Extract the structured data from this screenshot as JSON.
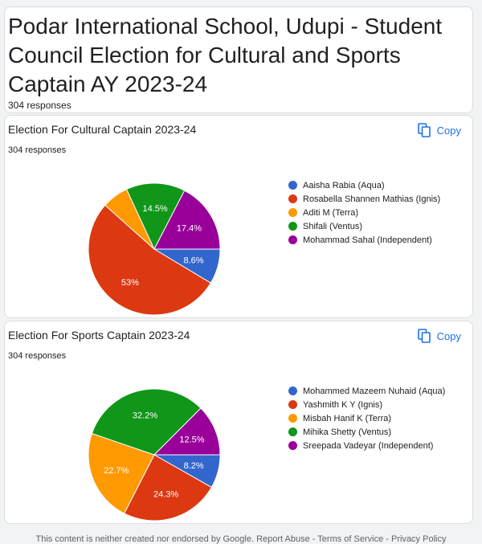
{
  "form": {
    "title": "Podar International School, Udupi - Student Council Election for Cultural and Sports Captain AY 2023-24",
    "responses": "304 responses"
  },
  "copy_label": "Copy",
  "chart_data": [
    {
      "type": "pie",
      "title": "Election For Cultural Captain 2023-24",
      "responses": "304 responses",
      "categories": [
        "Aaisha Rabia (Aqua)",
        "Rosabella Shannen Mathias (Ignis)",
        "Aditi M (Terra)",
        "Shifali (Ventus)",
        "Mohammad Sahal (Independent)"
      ],
      "values": [
        8.6,
        53,
        6.5,
        14.5,
        17.4
      ],
      "labels": [
        "8.6%",
        "53%",
        "",
        "14.5%",
        "17.4%"
      ],
      "colors": [
        "#3366cc",
        "#dc3912",
        "#ff9900",
        "#109618",
        "#990099"
      ],
      "legend_position": "right"
    },
    {
      "type": "pie",
      "title": "Election For Sports Captain 2023-24",
      "responses": "304 responses",
      "categories": [
        "Mohammed Mazeem Nuhaid (Aqua)",
        "Yashmith K Y (Ignis)",
        "Misbah Hanif K (Terra)",
        "Mihika Shetty (Ventus)",
        "Sreepada Vadeyar (Independent)"
      ],
      "values": [
        8.2,
        24.3,
        22.7,
        32.2,
        12.5
      ],
      "labels": [
        "8.2%",
        "24.3%",
        "22.7%",
        "32.2%",
        "12.5%"
      ],
      "colors": [
        "#3366cc",
        "#dc3912",
        "#ff9900",
        "#109618",
        "#990099"
      ],
      "legend_position": "right"
    }
  ],
  "footer": "This content is neither created nor endorsed by Google. Report Abuse - Terms of Service - Privacy Policy"
}
